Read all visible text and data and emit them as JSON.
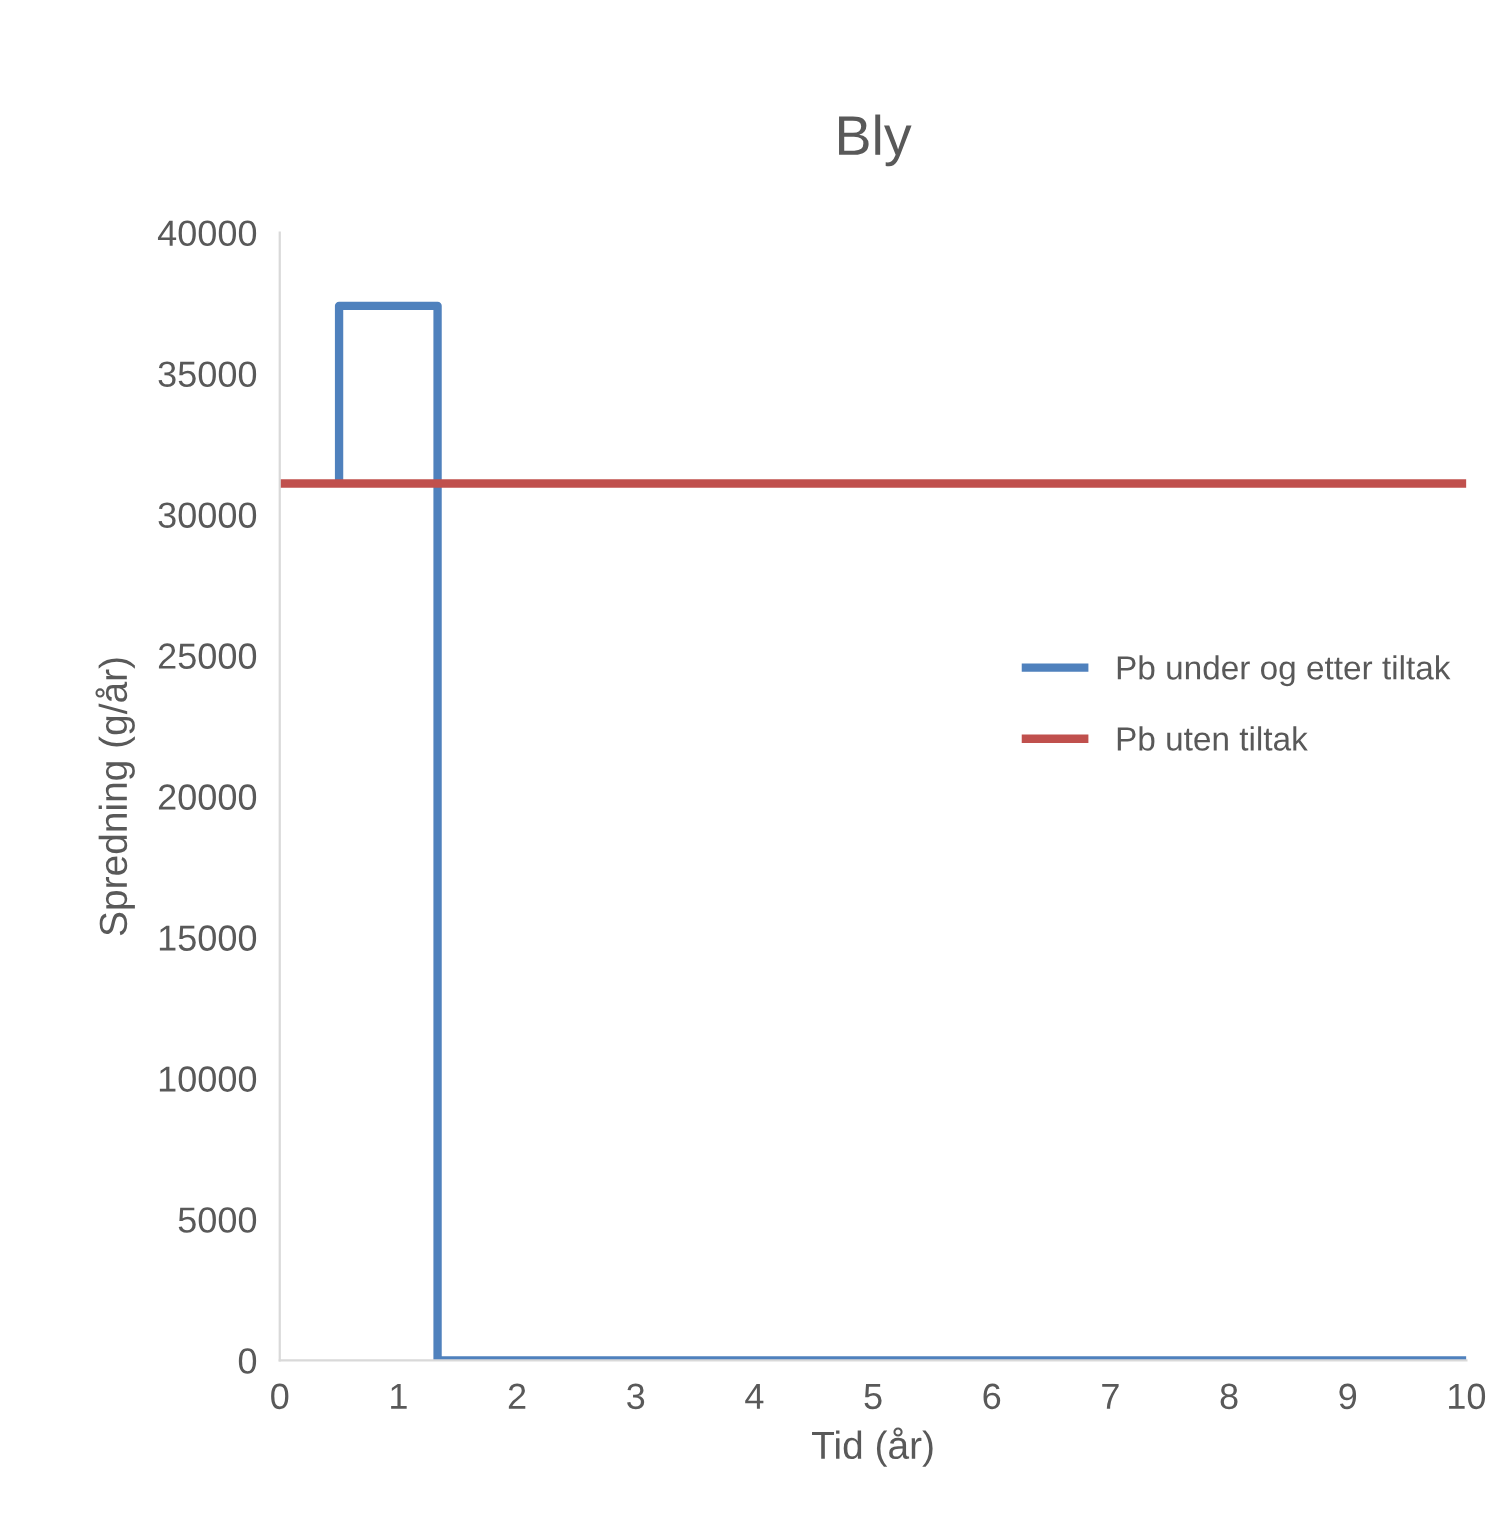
{
  "chart_data": {
    "type": "line",
    "title": "Bly",
    "xlabel": "Tid (år)",
    "ylabel": "Spredning (g/år)",
    "series": [
      {
        "name": "Pb under og etter tiltak",
        "color": "#4f81bd",
        "x": [
          0.5,
          0.5,
          1.33,
          1.33,
          10
        ],
        "values": [
          31100,
          37400,
          37400,
          0,
          0
        ]
      },
      {
        "name": "Pb uten tiltak",
        "color": "#c0504d",
        "x": [
          0,
          10
        ],
        "values": [
          31100,
          31100
        ]
      }
    ],
    "xlim": [
      0,
      10
    ],
    "xticks": [
      0,
      1,
      2,
      3,
      4,
      5,
      6,
      7,
      8,
      9,
      10
    ],
    "ylim": [
      0,
      40000
    ],
    "yticks": [
      0,
      5000,
      10000,
      15000,
      20000,
      25000,
      30000,
      35000,
      40000
    ],
    "grid": false,
    "legend": "right",
    "marker": "none",
    "line_style": "solid"
  }
}
